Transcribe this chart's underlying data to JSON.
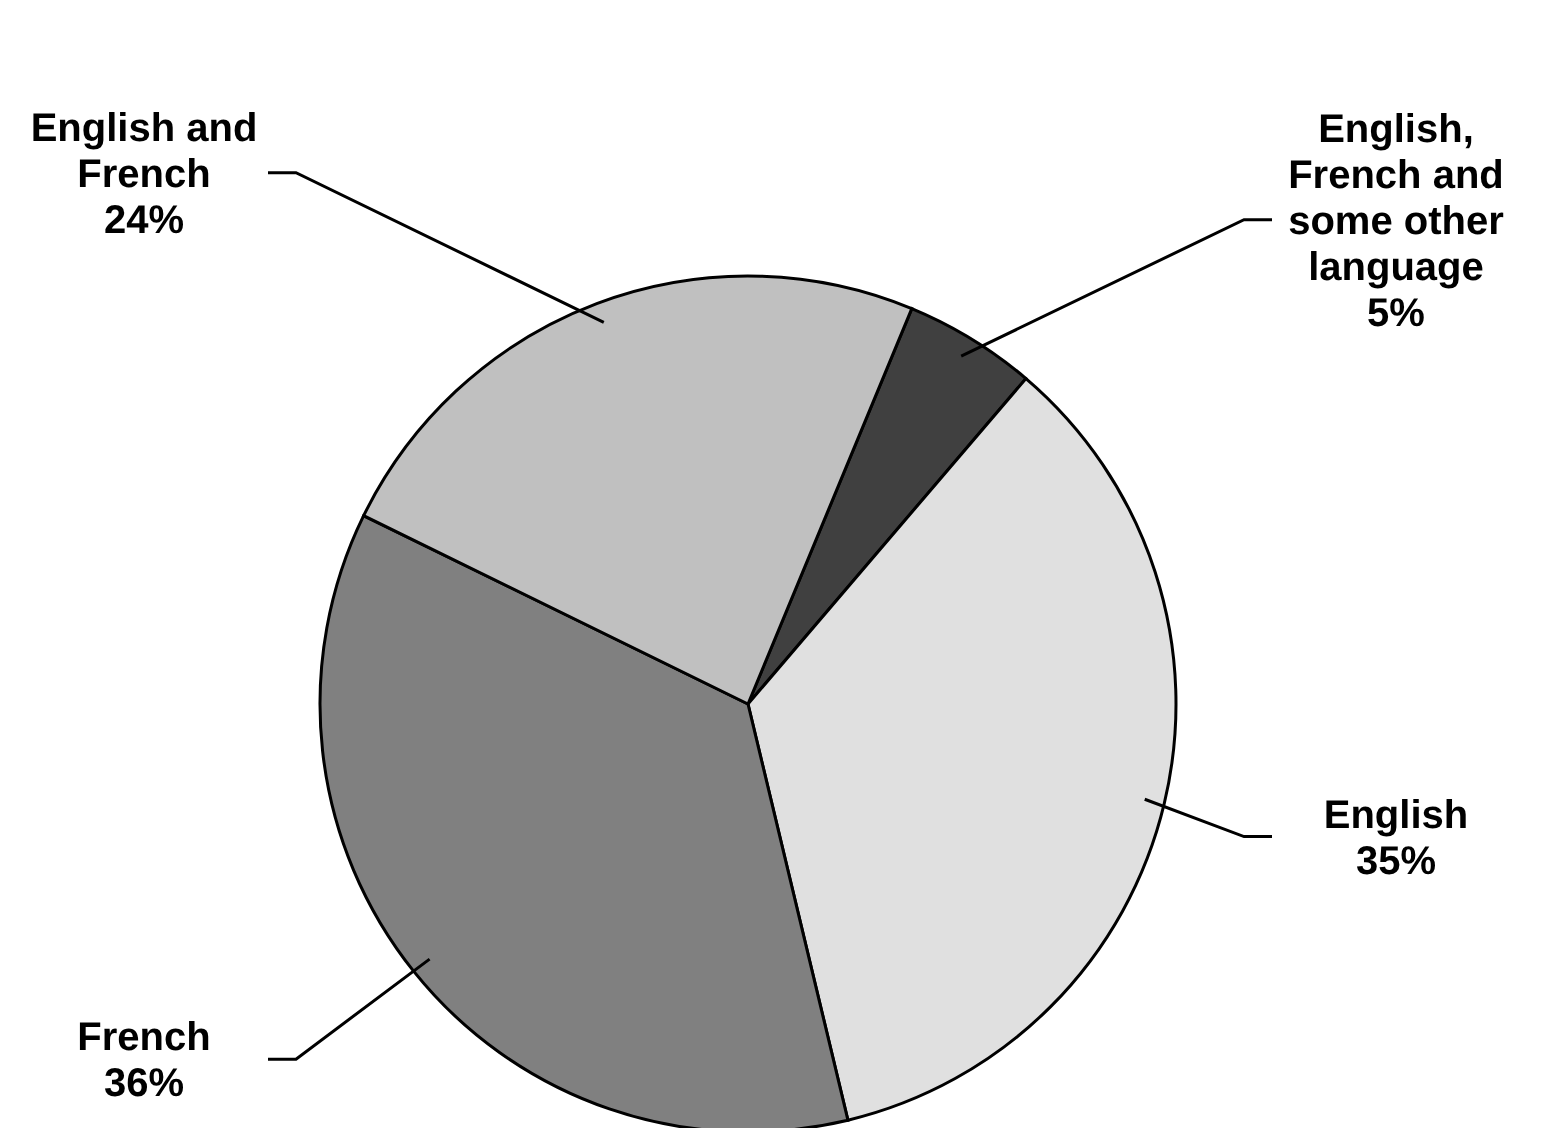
{
  "chart_data": {
    "type": "pie",
    "categories": [
      "English, French and some other language",
      "English",
      "French",
      "English and French"
    ],
    "values": [
      5,
      35,
      36,
      24
    ],
    "value_labels": [
      "5%",
      "35%",
      "36%",
      "24%"
    ],
    "colors": [
      "#404040",
      "#e0e0e0",
      "#808080",
      "#c0c0c0"
    ]
  }
}
